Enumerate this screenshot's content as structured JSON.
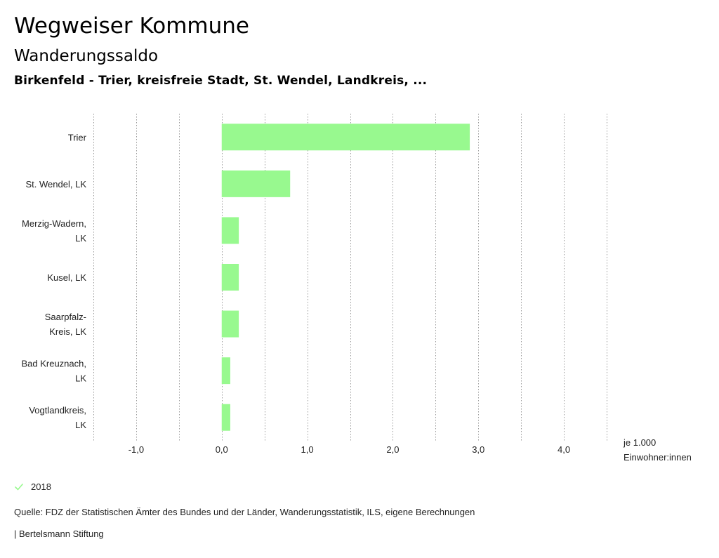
{
  "header": {
    "title": "Wegweiser Kommune",
    "subtitle": "Wanderungssaldo",
    "region": "Birkenfeld - Trier, kreisfreie Stadt, St. Wendel, Landkreis, ..."
  },
  "chart_data": {
    "type": "bar",
    "orientation": "horizontal",
    "categories": [
      [
        "Trier"
      ],
      [
        "St. Wendel, LK"
      ],
      [
        "Merzig-Wadern,",
        "LK"
      ],
      [
        "Kusel, LK"
      ],
      [
        "Saarpfalz-",
        "Kreis, LK"
      ],
      [
        "Bad Kreuznach,",
        "LK"
      ],
      [
        "Vogtlandkreis,",
        "LK"
      ]
    ],
    "series": [
      {
        "name": "2018",
        "values": [
          2.9,
          0.8,
          0.2,
          0.2,
          0.2,
          0.1,
          0.1
        ],
        "color": "#98f98f"
      }
    ],
    "xlim": [
      -1.5,
      4.5
    ],
    "grid_step": 0.5,
    "ticks": [
      {
        "value": -1.0,
        "label": "-1,0"
      },
      {
        "value": 0.0,
        "label": "0,0"
      },
      {
        "value": 1.0,
        "label": "1,0"
      },
      {
        "value": 2.0,
        "label": "2,0"
      },
      {
        "value": 3.0,
        "label": "3,0"
      },
      {
        "value": 4.0,
        "label": "4,0"
      }
    ],
    "unit_label": [
      "je 1.000",
      "Einwohner:innen"
    ],
    "grid": true,
    "legend_position": "bottom-left"
  },
  "legend": {
    "label": "2018",
    "color": "#98f98f",
    "icon": "check-icon"
  },
  "footer": {
    "source": "Quelle: FDZ der Statistischen Ämter des Bundes und der Länder, Wanderungsstatistik, ILS, eigene Berechnungen",
    "credit": "| Bertelsmann Stiftung"
  }
}
